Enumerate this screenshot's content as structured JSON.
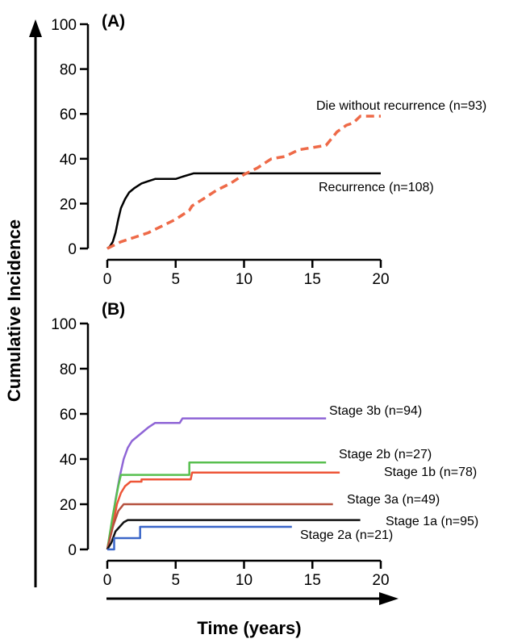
{
  "axes_titles": {
    "y": "Cumulative Incidence",
    "x": "Time (years)"
  },
  "chart_data": [
    {
      "type": "line",
      "panel_label": "(A)",
      "xlim": [
        0,
        20
      ],
      "ylim": [
        0,
        100
      ],
      "xticks": [
        "0",
        "5",
        "10",
        "15",
        "20"
      ],
      "yticks": [
        "0",
        "20",
        "40",
        "60",
        "80",
        "100"
      ],
      "series": [
        {
          "name": "Recurrence (n=108)",
          "color": "#000000",
          "dashed": false,
          "points": [
            [
              0,
              0
            ],
            [
              0.2,
              1
            ],
            [
              0.4,
              3
            ],
            [
              0.6,
              7
            ],
            [
              0.8,
              13
            ],
            [
              1.0,
              18
            ],
            [
              1.3,
              22
            ],
            [
              1.6,
              25
            ],
            [
              2.0,
              27
            ],
            [
              2.5,
              29
            ],
            [
              3.0,
              30
            ],
            [
              3.5,
              31
            ],
            [
              4.0,
              31
            ],
            [
              5.0,
              31
            ],
            [
              5.5,
              32
            ],
            [
              6.3,
              33.5
            ],
            [
              8,
              33.5
            ],
            [
              10,
              33.5
            ],
            [
              15,
              33.5
            ],
            [
              20,
              33.5
            ]
          ]
        },
        {
          "name": "Die without recurrence (n=93)",
          "color": "#ee6a48",
          "dashed": true,
          "points": [
            [
              0,
              0
            ],
            [
              1,
              3
            ],
            [
              2,
              5
            ],
            [
              3,
              7
            ],
            [
              4,
              10
            ],
            [
              5,
              13
            ],
            [
              6,
              17
            ],
            [
              6.2,
              19
            ],
            [
              7,
              22
            ],
            [
              8,
              26
            ],
            [
              9,
              29
            ],
            [
              10,
              33
            ],
            [
              11,
              36
            ],
            [
              12,
              40
            ],
            [
              13,
              41
            ],
            [
              14,
              44
            ],
            [
              15,
              45
            ],
            [
              16,
              46
            ],
            [
              16.8,
              52
            ],
            [
              17.5,
              55
            ],
            [
              18,
              56
            ],
            [
              18.5,
              59
            ],
            [
              20,
              59
            ]
          ]
        }
      ]
    },
    {
      "type": "line",
      "panel_label": "(B)",
      "xlim": [
        0,
        20
      ],
      "ylim": [
        0,
        100
      ],
      "xticks": [
        "0",
        "5",
        "10",
        "15",
        "20"
      ],
      "yticks": [
        "0",
        "20",
        "40",
        "60",
        "80",
        "100"
      ],
      "series": [
        {
          "name": "Stage 3b (n=94)",
          "color": "#8f65d6",
          "points": [
            [
              0,
              0
            ],
            [
              0.3,
              10
            ],
            [
              0.6,
              22
            ],
            [
              0.9,
              32
            ],
            [
              1.2,
              40
            ],
            [
              1.5,
              45
            ],
            [
              1.8,
              48
            ],
            [
              2.2,
              50
            ],
            [
              2.6,
              52
            ],
            [
              3.0,
              54
            ],
            [
              3.5,
              56
            ],
            [
              5.3,
              56
            ],
            [
              5.5,
              58
            ],
            [
              16,
              58
            ]
          ]
        },
        {
          "name": "Stage 2b (n=27)",
          "color": "#58bf4f",
          "points": [
            [
              0,
              0
            ],
            [
              0.4,
              15
            ],
            [
              0.8,
              28
            ],
            [
              1.0,
              33
            ],
            [
              6.0,
              33
            ],
            [
              6.0,
              38.5
            ],
            [
              16,
              38.5
            ]
          ]
        },
        {
          "name": "Stage 1b (n=78)",
          "color": "#ee5537",
          "points": [
            [
              0,
              0
            ],
            [
              0.4,
              10
            ],
            [
              0.7,
              20
            ],
            [
              1.0,
              25
            ],
            [
              1.3,
              28
            ],
            [
              1.7,
              30
            ],
            [
              2.5,
              30
            ],
            [
              2.5,
              31
            ],
            [
              6.1,
              31
            ],
            [
              6.2,
              34
            ],
            [
              17,
              34
            ]
          ]
        },
        {
          "name": "Stage 3a (n=49)",
          "color": "#b5503e",
          "points": [
            [
              0,
              0
            ],
            [
              0.4,
              10
            ],
            [
              0.8,
              17
            ],
            [
              1.2,
              20
            ],
            [
              16.5,
              20
            ]
          ]
        },
        {
          "name": "Stage 1a (n=95)",
          "color": "#111111",
          "points": [
            [
              0,
              0
            ],
            [
              0.3,
              3
            ],
            [
              0.6,
              8
            ],
            [
              0.9,
              10
            ],
            [
              1.2,
              12
            ],
            [
              1.5,
              13
            ],
            [
              18.5,
              13
            ]
          ]
        },
        {
          "name": "Stage 2a (n=21)",
          "color": "#3a66c8",
          "points": [
            [
              0,
              0
            ],
            [
              0.5,
              0
            ],
            [
              0.5,
              5
            ],
            [
              2.4,
              5
            ],
            [
              2.4,
              10
            ],
            [
              13.5,
              10
            ]
          ]
        }
      ]
    }
  ]
}
